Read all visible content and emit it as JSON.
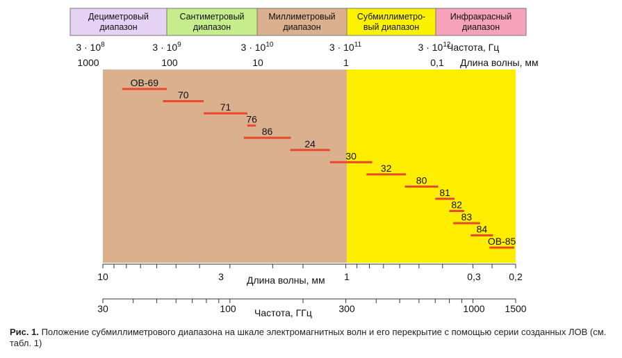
{
  "bands": [
    {
      "lines": [
        "Дециметровый",
        "диапазон"
      ],
      "color": "#e6d2f4"
    },
    {
      "lines": [
        "Сантиметровый",
        "диапазон"
      ],
      "color": "#c6ec8c"
    },
    {
      "lines": [
        "Миллиметровый",
        "диапазон"
      ],
      "color": "#dbb08f"
    },
    {
      "lines": [
        "Субмиллиметро-",
        "вый диапазон"
      ],
      "color": "#fbf200"
    },
    {
      "lines": [
        "Инфракрасный",
        "диапазон"
      ],
      "color": "#f7a2bb"
    }
  ],
  "top_frequency_ticks": [
    {
      "base": "3 · 10",
      "exp": "8"
    },
    {
      "base": "3 · 10",
      "exp": "9"
    },
    {
      "base": "3 · 10",
      "exp": "10"
    },
    {
      "base": "3 · 10",
      "exp": "11"
    },
    {
      "base": "3 · 10",
      "exp": "12"
    }
  ],
  "top_frequency_label": "Частота, Гц",
  "top_wavelength_ticks": [
    "1000",
    "100",
    "10",
    "1",
    "0,1"
  ],
  "top_wavelength_label": "Длина волны, мм",
  "region_colors": {
    "millimeter": "#dbb08f",
    "submillimeter": "#ffee00",
    "bar": "#e8482b"
  },
  "tubes": [
    {
      "label": "ОВ-69",
      "f_min": 36,
      "f_max": 55
    },
    {
      "label": "70",
      "f_min": 53,
      "f_max": 78
    },
    {
      "label": "71",
      "f_min": 78,
      "f_max": 118
    },
    {
      "label": "76",
      "f_min": 118,
      "f_max": 128
    },
    {
      "label": "86",
      "f_min": 114,
      "f_max": 178
    },
    {
      "label": "24",
      "f_min": 177,
      "f_max": 258
    },
    {
      "label": "30",
      "f_min": 258,
      "f_max": 385
    },
    {
      "label": "32",
      "f_min": 365,
      "f_max": 530
    },
    {
      "label": "80",
      "f_min": 525,
      "f_max": 720
    },
    {
      "label": "81",
      "f_min": 700,
      "f_max": 840
    },
    {
      "label": "82",
      "f_min": 800,
      "f_max": 920
    },
    {
      "label": "83",
      "f_min": 830,
      "f_max": 1070
    },
    {
      "label": "84",
      "f_min": 980,
      "f_max": 1210
    },
    {
      "label": "ОВ-85",
      "f_min": 1170,
      "f_max": 1480
    }
  ],
  "bottom_wavelength_axis": {
    "label": "Длина волны, мм",
    "ticks": [
      "10",
      "3",
      "1",
      "0,3",
      "0,2"
    ]
  },
  "bottom_frequency_axis": {
    "label": "Частота, ГГц",
    "ticks": [
      "30",
      "100",
      "300",
      "1000",
      "1500"
    ]
  },
  "caption": {
    "prefix": "Рис. 1.",
    "text": " Положение субмиллиметрового диапазона на шкале электромагнитных волн и его перекрытие с помощью серии созданных ЛОВ (см. табл. 1)"
  }
}
